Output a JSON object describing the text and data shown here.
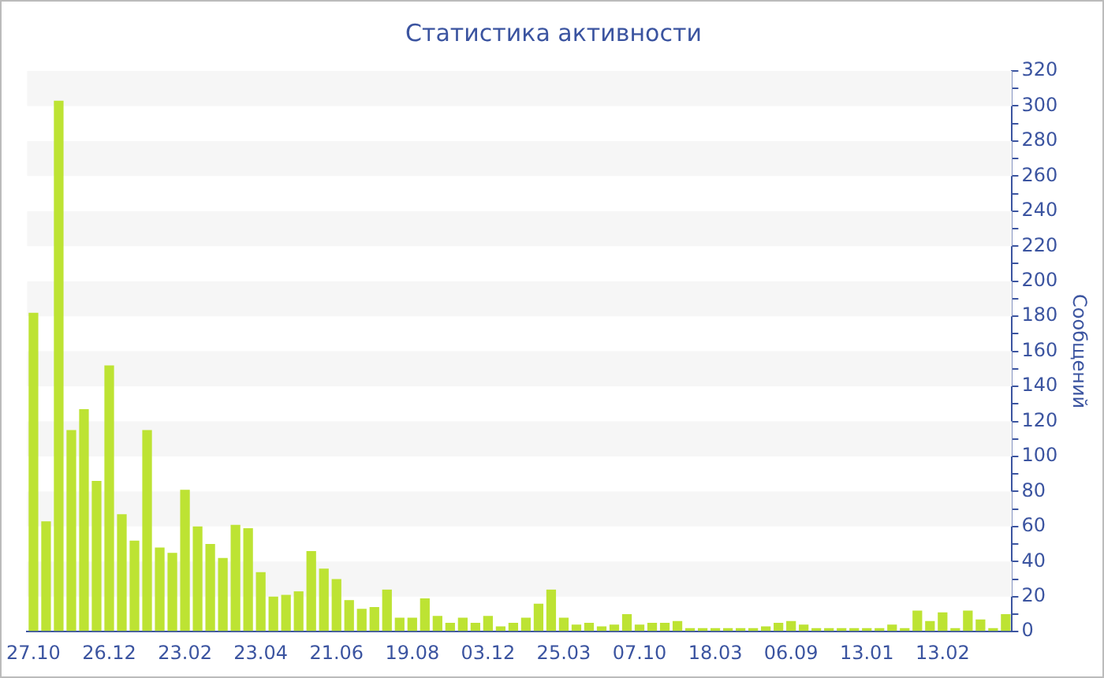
{
  "chart_data": {
    "type": "bar",
    "title": "Статистика активности",
    "ylabel": "Сообщений",
    "color": "#bde333",
    "categories": [
      "27.10",
      null,
      null,
      null,
      null,
      null,
      "26.12",
      null,
      null,
      null,
      null,
      null,
      "23.02",
      null,
      null,
      null,
      null,
      null,
      "23.04",
      null,
      null,
      null,
      null,
      null,
      "21.06",
      null,
      null,
      null,
      null,
      null,
      "19.08",
      null,
      null,
      null,
      null,
      null,
      "03.12",
      null,
      null,
      null,
      null,
      null,
      "25.03",
      null,
      null,
      null,
      null,
      null,
      "07.10",
      null,
      null,
      null,
      null,
      null,
      "18.03",
      null,
      null,
      null,
      null,
      null,
      "06.09",
      null,
      null,
      null,
      null,
      null,
      "13.01",
      null,
      null,
      null,
      null,
      null,
      "13.02",
      null,
      null,
      null,
      null,
      null
    ],
    "values": [
      182,
      63,
      303,
      115,
      127,
      86,
      152,
      67,
      52,
      115,
      48,
      45,
      81,
      60,
      50,
      42,
      61,
      59,
      34,
      20,
      21,
      23,
      46,
      36,
      30,
      18,
      13,
      14,
      24,
      8,
      8,
      19,
      9,
      5,
      8,
      5,
      9,
      3,
      5,
      8,
      16,
      24,
      8,
      4,
      5,
      3,
      4,
      10,
      4,
      5,
      5,
      6,
      2,
      2,
      2,
      2,
      2,
      2,
      3,
      5,
      6,
      4,
      2,
      2,
      2,
      2,
      2,
      2,
      4,
      2,
      12,
      6,
      11,
      2,
      12,
      7,
      2,
      10
    ],
    "ylim": [
      0,
      320
    ],
    "yticks": [
      0,
      {
        "value": 10,
        "label": null
      },
      20,
      {
        "value": 30,
        "label": null
      },
      40,
      {
        "value": 50,
        "label": null
      },
      60,
      {
        "value": 70,
        "label": null
      },
      80,
      {
        "value": 90,
        "label": null
      },
      100,
      {
        "value": 110,
        "label": null
      },
      120,
      {
        "value": 130,
        "label": null
      },
      140,
      {
        "value": 150,
        "label": null
      },
      160,
      {
        "value": 170,
        "label": null
      },
      180,
      {
        "value": 190,
        "label": null
      },
      200,
      {
        "value": 210,
        "label": null
      },
      220,
      {
        "value": 230,
        "label": null
      },
      240,
      {
        "value": 250,
        "label": null
      },
      260,
      {
        "value": 270,
        "label": null
      },
      280,
      {
        "value": 290,
        "label": null
      },
      300,
      {
        "value": 310,
        "label": null
      },
      320
    ]
  }
}
